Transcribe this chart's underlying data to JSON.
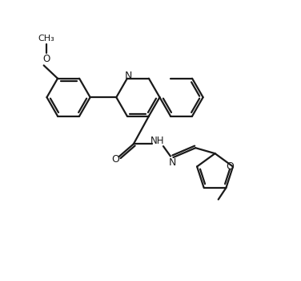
{
  "bg_color": "#ffffff",
  "line_color": "#1a1a1a",
  "line_width": 1.6,
  "figsize": [
    3.76,
    3.5
  ],
  "dpi": 100,
  "xlim": [
    0,
    10
  ],
  "ylim": [
    0,
    10
  ]
}
